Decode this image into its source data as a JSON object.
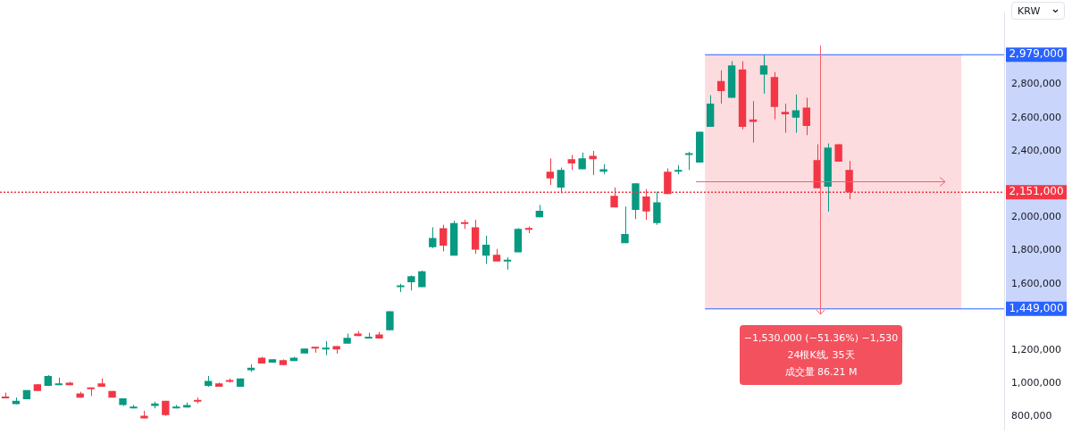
{
  "chart_data": {
    "type": "candlestick",
    "ylabel": "KRW",
    "categories": [
      null,
      null,
      null,
      null,
      null,
      null,
      null,
      null,
      null,
      null,
      null,
      null,
      null,
      null,
      null,
      null,
      null,
      null,
      null,
      null,
      null,
      null,
      null,
      null,
      null,
      null,
      null,
      null,
      null,
      null,
      null,
      null,
      null,
      null,
      null,
      null,
      null,
      null,
      null,
      null,
      null,
      null,
      null,
      null,
      null,
      null,
      null,
      null,
      null,
      null,
      null,
      null,
      null,
      null,
      null,
      null,
      null,
      null,
      null,
      null,
      null,
      null,
      null,
      null,
      null,
      null,
      null,
      null,
      null,
      null,
      null,
      null,
      null,
      null,
      null,
      null,
      null,
      null,
      null,
      null,
      null,
      null,
      null,
      null,
      null,
      null,
      null,
      null,
      null,
      null,
      null,
      null,
      null,
      null
    ],
    "ohlc": [
      [
        920000,
        945000,
        910000,
        910000
      ],
      [
        875000,
        915000,
        875000,
        895000
      ],
      [
        905000,
        960000,
        905000,
        960000
      ],
      [
        995000,
        995000,
        955000,
        955000
      ],
      [
        985000,
        1050000,
        985000,
        1045000
      ],
      [
        990000,
        1035000,
        990000,
        1000000
      ],
      [
        1005000,
        1010000,
        990000,
        990000
      ],
      [
        940000,
        950000,
        915000,
        915000
      ],
      [
        975000,
        975000,
        925000,
        965000
      ],
      [
        1000000,
        1030000,
        980000,
        980000
      ],
      [
        955000,
        955000,
        915000,
        915000
      ],
      [
        870000,
        910000,
        865000,
        910000
      ],
      [
        850000,
        870000,
        850000,
        860000
      ],
      [
        805000,
        835000,
        790000,
        790000
      ],
      [
        865000,
        890000,
        850000,
        880000
      ],
      [
        895000,
        895000,
        805000,
        810000
      ],
      [
        850000,
        870000,
        850000,
        860000
      ],
      [
        855000,
        885000,
        855000,
        870000
      ],
      [
        895000,
        915000,
        880000,
        890000
      ],
      [
        985000,
        1045000,
        980000,
        1015000
      ],
      [
        1000000,
        1005000,
        980000,
        980000
      ],
      [
        1015000,
        1030000,
        1005000,
        1010000
      ],
      [
        980000,
        1030000,
        980000,
        1030000
      ],
      [
        1080000,
        1115000,
        1070000,
        1095000
      ],
      [
        1155000,
        1160000,
        1120000,
        1120000
      ],
      [
        1125000,
        1145000,
        1125000,
        1145000
      ],
      [
        1140000,
        1145000,
        1110000,
        1110000
      ],
      [
        1135000,
        1160000,
        1135000,
        1155000
      ],
      [
        1180000,
        1210000,
        1180000,
        1210000
      ],
      [
        1215000,
        1220000,
        1185000,
        1210000
      ],
      [
        1205000,
        1255000,
        1170000,
        1210000
      ],
      [
        1225000,
        1225000,
        1180000,
        1205000
      ],
      [
        1240000,
        1300000,
        1240000,
        1275000
      ],
      [
        1300000,
        1315000,
        1285000,
        1285000
      ],
      [
        1270000,
        1305000,
        1270000,
        1280000
      ],
      [
        1295000,
        1310000,
        1270000,
        1270000
      ],
      [
        1320000,
        1435000,
        1320000,
        1435000
      ],
      [
        1580000,
        1600000,
        1550000,
        1590000
      ],
      [
        1610000,
        1650000,
        1560000,
        1645000
      ],
      [
        1580000,
        1680000,
        1580000,
        1675000
      ],
      [
        1820000,
        1940000,
        1815000,
        1875000
      ],
      [
        1935000,
        1955000,
        1795000,
        1830000
      ],
      [
        1770000,
        1980000,
        1770000,
        1965000
      ],
      [
        1970000,
        1985000,
        1930000,
        1960000
      ],
      [
        1940000,
        1985000,
        1780000,
        1805000
      ],
      [
        1770000,
        1890000,
        1720000,
        1835000
      ],
      [
        1775000,
        1810000,
        1735000,
        1735000
      ],
      [
        1735000,
        1760000,
        1685000,
        1740000
      ],
      [
        1790000,
        1935000,
        1790000,
        1930000
      ],
      [
        1930000,
        1945000,
        1905000,
        1925000
      ],
      [
        2000000,
        2075000,
        2000000,
        2040000
      ],
      [
        2275000,
        2355000,
        2195000,
        2235000
      ],
      [
        2180000,
        2300000,
        2145000,
        2285000
      ],
      [
        2350000,
        2375000,
        2285000,
        2325000
      ],
      [
        2290000,
        2390000,
        2290000,
        2355000
      ],
      [
        2370000,
        2400000,
        2255000,
        2350000
      ],
      [
        2275000,
        2320000,
        2260000,
        2290000
      ],
      [
        2130000,
        2180000,
        2060000,
        2060000
      ],
      [
        1845000,
        2065000,
        1845000,
        1900000
      ],
      [
        2045000,
        2205000,
        1990000,
        2205000
      ],
      [
        2125000,
        2170000,
        1985000,
        2035000
      ],
      [
        1965000,
        2155000,
        1955000,
        2090000
      ],
      [
        2275000,
        2295000,
        2140000,
        2140000
      ],
      [
        2275000,
        2315000,
        2260000,
        2280000
      ],
      [
        2375000,
        2395000,
        2285000,
        2380000
      ],
      [
        2330000,
        2515000,
        2330000,
        2515000
      ],
      [
        2545000,
        2735000,
        2545000,
        2685000
      ],
      [
        2820000,
        2885000,
        2685000,
        2760000
      ],
      [
        2720000,
        2940000,
        2720000,
        2915000
      ],
      [
        2890000,
        2940000,
        2530000,
        2545000
      ],
      [
        2590000,
        2700000,
        2450000,
        2575000
      ],
      [
        2860000,
        2979000,
        2745000,
        2915000
      ],
      [
        2845000,
        2875000,
        2590000,
        2665000
      ],
      [
        2635000,
        2685000,
        2510000,
        2620000
      ],
      [
        2600000,
        2740000,
        2510000,
        2645000
      ],
      [
        2660000,
        2720000,
        2495000,
        2550000
      ],
      [
        2345000,
        2440000,
        2175000,
        2175000
      ],
      [
        2185000,
        2445000,
        2035000,
        2420000
      ],
      [
        2440000,
        2440000,
        2335000,
        2335000
      ],
      [
        2285000,
        2340000,
        2110000,
        2151000
      ],
      null,
      null,
      null,
      null,
      null,
      null,
      null,
      null,
      null,
      null,
      null,
      null,
      null,
      null
    ],
    "colors": [
      "#f23645",
      "#089981",
      "#089981",
      "#f23645",
      "#089981",
      "#089981",
      "#f23645",
      "#f23645",
      "#f23645",
      "#f23645",
      "#f23645",
      "#089981",
      "#089981",
      "#f23645",
      "#089981",
      "#f23645",
      "#089981",
      "#089981",
      "#f23645",
      "#089981",
      "#f23645",
      "#f23645",
      "#089981",
      "#089981",
      "#f23645",
      "#089981",
      "#f23645",
      "#089981",
      "#089981",
      "#f23645",
      "#089981",
      "#f23645",
      "#089981",
      "#f23645",
      "#089981",
      "#f23645",
      "#089981",
      "#089981",
      "#089981",
      "#089981",
      "#089981",
      "#f23645",
      "#089981",
      "#f23645",
      "#f23645",
      "#089981",
      "#f23645",
      "#089981",
      "#089981",
      "#f23645",
      "#089981",
      "#f23645",
      "#089981",
      "#f23645",
      "#089981",
      "#f23645",
      "#089981",
      "#f23645",
      "#089981",
      "#089981",
      "#f23645",
      "#089981",
      "#f23645",
      "#089981",
      "#089981",
      "#089981",
      "#089981",
      "#f23645",
      "#089981",
      "#f23645",
      "#f23645",
      "#089981",
      "#f23645",
      "#f23645",
      "#089981",
      "#f23645",
      "#f23645",
      "#089981",
      "#f23645",
      "#f23645",
      null,
      null,
      null,
      null,
      null,
      null,
      null,
      null,
      null,
      null,
      null,
      null,
      null,
      null
    ],
    "ylim": [
      720000,
      3230000
    ],
    "yticks": [
      {
        "value": 800000,
        "label": "800,000"
      },
      {
        "value": 1000000,
        "label": "1,000,000"
      },
      {
        "value": 1200000,
        "label": "1,200,000"
      },
      {
        "value": 1600000,
        "label": "1,600,000"
      },
      {
        "value": 1800000,
        "label": "1,800,000"
      },
      {
        "value": 2000000,
        "label": "2,000,000"
      },
      {
        "value": 2400000,
        "label": "2,400,000"
      },
      {
        "value": 2600000,
        "label": "2,600,000"
      },
      {
        "value": 2800000,
        "label": "2,800,000"
      }
    ],
    "tick_labels": "y",
    "grid": false,
    "legend": false,
    "bands": [
      {
        "axis": "y",
        "from": 1449000,
        "to": 2979000,
        "color": "#fcdcdf"
      }
    ],
    "ref_lines": [
      {
        "axis": "y",
        "value": 2979000,
        "label": "2,979,000",
        "color": "#2962ff",
        "line_style": "solid"
      },
      {
        "axis": "y",
        "value": 1449000,
        "label": "1,449,000",
        "color": "#2962ff",
        "line_style": "solid"
      },
      {
        "axis": "y",
        "value": 2151000,
        "label": "2,151,000",
        "color": "#f23645",
        "line_style": "dotted"
      }
    ],
    "annotations": [
      "−1,530,000 (−51.36%) −1,530",
      "24根K线, 35天",
      "成交量 86.21 M"
    ]
  }
}
